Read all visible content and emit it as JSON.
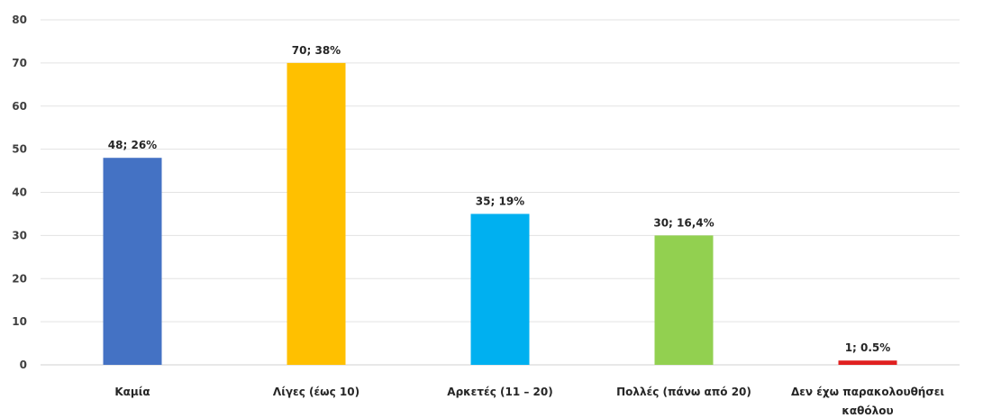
{
  "chart_data": {
    "type": "bar",
    "categories": [
      [
        "Καμία"
      ],
      [
        "Λίγες (έως 10)"
      ],
      [
        "Αρκετές (11 – 20)"
      ],
      [
        "Πολλές (πάνω από 20)"
      ],
      [
        "Δεν έχω παρακολουθήσει",
        "καθόλου"
      ]
    ],
    "values": [
      48,
      70,
      35,
      30,
      1
    ],
    "data_labels": [
      "48; 26%",
      "70; 38%",
      "35; 19%",
      "30; 16,4%",
      "1; 0.5%"
    ],
    "colors": [
      "#4472C4",
      "#FFC000",
      "#00B0F0",
      "#92D050",
      "#E02020"
    ],
    "title": "",
    "xlabel": "",
    "ylabel": "",
    "ylim": [
      0,
      80
    ],
    "yticks": [
      0,
      10,
      20,
      30,
      40,
      50,
      60,
      70,
      80
    ],
    "grid": true,
    "legend": "none"
  }
}
